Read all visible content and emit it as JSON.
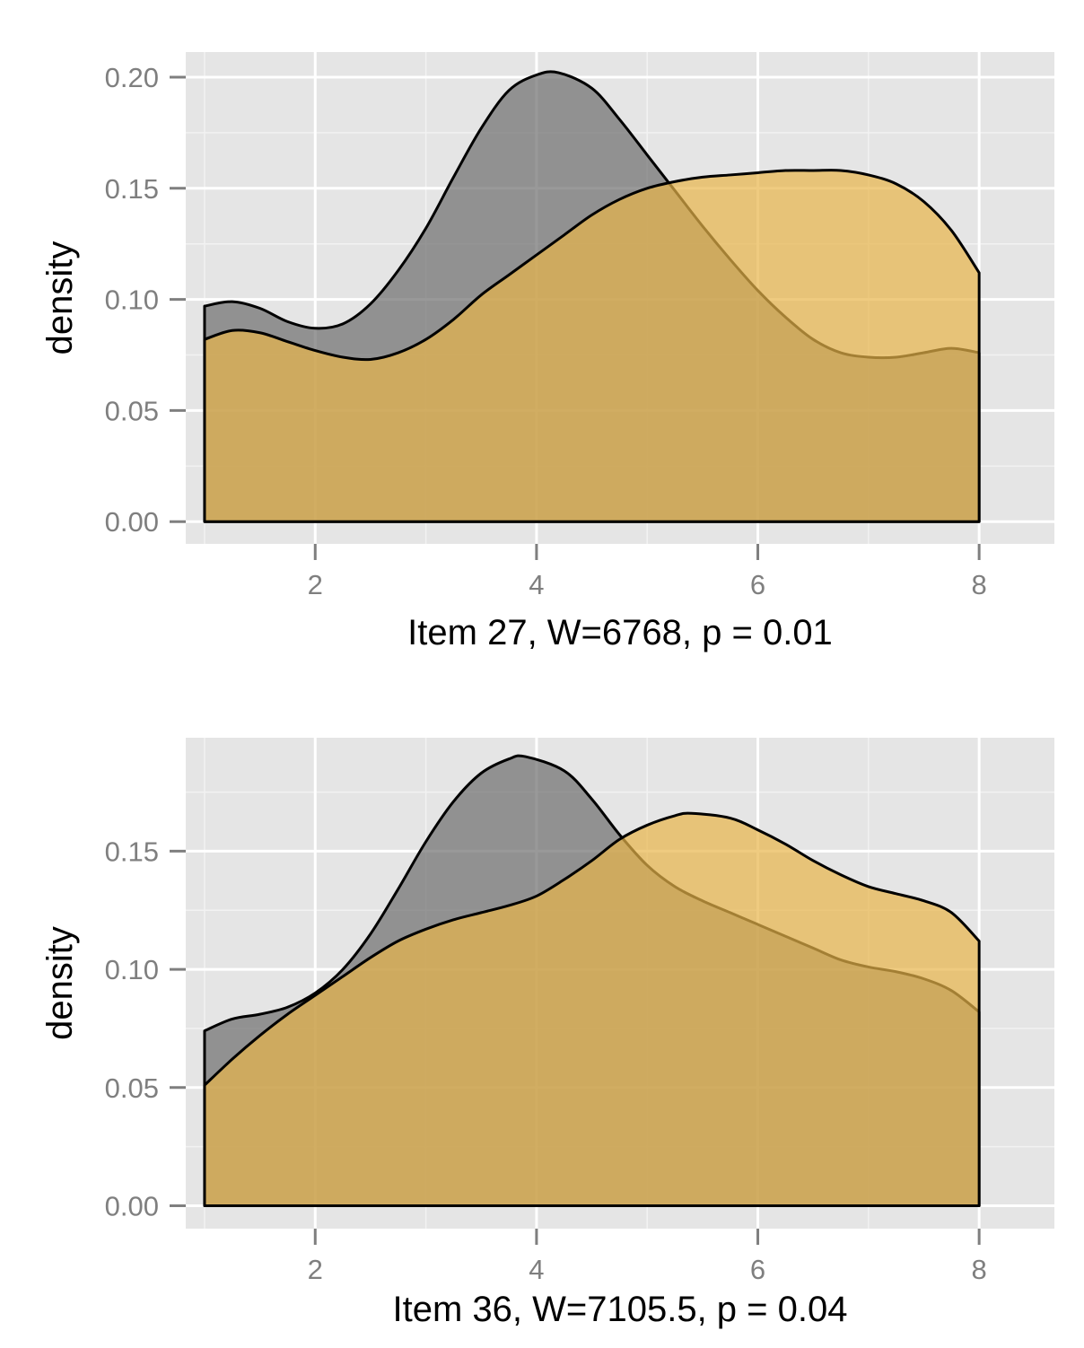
{
  "chart_data": [
    {
      "type": "area",
      "xlabel": "Item 27, W=6768, p = 0.01",
      "ylabel": "density",
      "xlim": [
        0.83,
        8.68
      ],
      "ylim": [
        -0.01,
        0.2113
      ],
      "x_ticks": [
        2,
        4,
        6,
        8
      ],
      "y_ticks": [
        0.0,
        0.05,
        0.1,
        0.15,
        0.2
      ],
      "y_tick_labels": [
        "0.00",
        "0.05",
        "0.10",
        "0.15",
        "0.20"
      ],
      "grid": true,
      "legend": "none",
      "series": [
        {
          "color": "#6e6e6e",
          "x": [
            1.0,
            1.25,
            1.5,
            1.75,
            2.0,
            2.25,
            2.5,
            2.75,
            3.0,
            3.25,
            3.5,
            3.75,
            4.0,
            4.2,
            4.5,
            4.75,
            5.0,
            5.25,
            5.5,
            5.75,
            6.0,
            6.25,
            6.5,
            6.75,
            7.0,
            7.25,
            7.5,
            7.75,
            8.0
          ],
          "y": [
            0.097,
            0.099,
            0.096,
            0.09,
            0.087,
            0.089,
            0.098,
            0.113,
            0.132,
            0.155,
            0.177,
            0.194,
            0.201,
            0.202,
            0.195,
            0.181,
            0.165,
            0.149,
            0.133,
            0.118,
            0.104,
            0.092,
            0.082,
            0.076,
            0.074,
            0.074,
            0.076,
            0.078,
            0.076
          ]
        },
        {
          "color": "#e8b54a",
          "x": [
            1.0,
            1.25,
            1.5,
            1.75,
            2.0,
            2.25,
            2.5,
            2.75,
            3.0,
            3.25,
            3.5,
            3.75,
            4.0,
            4.25,
            4.5,
            4.75,
            5.0,
            5.25,
            5.5,
            5.75,
            6.0,
            6.25,
            6.5,
            6.75,
            7.0,
            7.25,
            7.5,
            7.75,
            8.0
          ],
          "y": [
            0.082,
            0.086,
            0.085,
            0.081,
            0.077,
            0.074,
            0.073,
            0.076,
            0.082,
            0.091,
            0.102,
            0.111,
            0.12,
            0.129,
            0.138,
            0.145,
            0.15,
            0.153,
            0.155,
            0.156,
            0.157,
            0.158,
            0.158,
            0.158,
            0.156,
            0.152,
            0.144,
            0.131,
            0.112
          ]
        }
      ]
    },
    {
      "type": "area",
      "xlabel": "Item 36, W=7105.5, p = 0.04",
      "ylabel": "density",
      "xlim": [
        0.83,
        8.68
      ],
      "ylim": [
        -0.0097,
        0.198
      ],
      "x_ticks": [
        2,
        4,
        6,
        8
      ],
      "y_ticks": [
        0.0,
        0.05,
        0.1,
        0.15
      ],
      "y_tick_labels": [
        "0.00",
        "0.05",
        "0.10",
        "0.15"
      ],
      "grid": true,
      "legend": "none",
      "series": [
        {
          "color": "#6e6e6e",
          "x": [
            1.0,
            1.25,
            1.5,
            1.75,
            2.0,
            2.25,
            2.5,
            2.75,
            3.0,
            3.25,
            3.5,
            3.75,
            3.9,
            4.25,
            4.5,
            4.75,
            5.0,
            5.25,
            5.5,
            5.75,
            6.0,
            6.25,
            6.5,
            6.75,
            7.0,
            7.25,
            7.5,
            7.75,
            8.0
          ],
          "y": [
            0.074,
            0.079,
            0.081,
            0.084,
            0.09,
            0.1,
            0.115,
            0.134,
            0.154,
            0.171,
            0.183,
            0.189,
            0.19,
            0.184,
            0.172,
            0.157,
            0.144,
            0.135,
            0.129,
            0.124,
            0.119,
            0.114,
            0.109,
            0.104,
            0.101,
            0.099,
            0.096,
            0.091,
            0.082
          ]
        },
        {
          "color": "#e8b54a",
          "x": [
            1.0,
            1.25,
            1.5,
            1.75,
            2.0,
            2.25,
            2.5,
            2.75,
            3.0,
            3.25,
            3.5,
            3.75,
            4.0,
            4.25,
            4.5,
            4.75,
            5.0,
            5.25,
            5.4,
            5.75,
            6.0,
            6.25,
            6.5,
            6.75,
            7.0,
            7.25,
            7.5,
            7.75,
            8.0
          ],
          "y": [
            0.051,
            0.062,
            0.072,
            0.081,
            0.089,
            0.097,
            0.105,
            0.112,
            0.117,
            0.121,
            0.124,
            0.127,
            0.131,
            0.138,
            0.146,
            0.155,
            0.161,
            0.165,
            0.166,
            0.164,
            0.159,
            0.153,
            0.146,
            0.14,
            0.135,
            0.132,
            0.129,
            0.124,
            0.112
          ]
        }
      ]
    }
  ]
}
